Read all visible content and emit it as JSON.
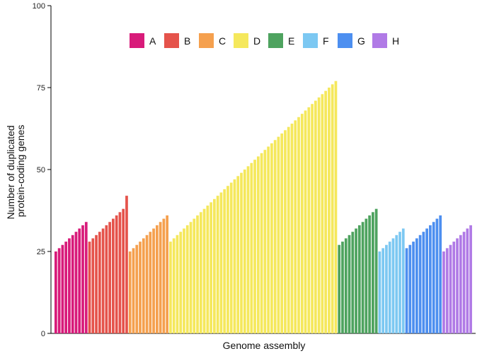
{
  "chart_data": {
    "type": "bar",
    "title": "",
    "xlabel": "Genome assembly",
    "ylabel_lines": [
      "Number of duplicated",
      "protein-coding genes"
    ],
    "ylim": [
      0,
      100
    ],
    "yticks": [
      0,
      25,
      50,
      75,
      100
    ],
    "grid": false,
    "legend_position": "top-center",
    "series": [
      {
        "name": "A",
        "color": "#d81b7a",
        "values": [
          25,
          26,
          27,
          28,
          29,
          30,
          31,
          32,
          33,
          34
        ]
      },
      {
        "name": "B",
        "color": "#e5534b",
        "values": [
          28,
          29,
          30,
          31,
          32,
          33,
          34,
          35,
          36,
          37,
          38,
          42
        ]
      },
      {
        "name": "C",
        "color": "#f5a04e",
        "values": [
          25,
          26,
          27,
          28,
          29,
          30,
          31,
          32,
          33,
          34,
          35,
          36
        ]
      },
      {
        "name": "D",
        "color": "#f5e85c",
        "values": [
          28,
          29,
          30,
          31,
          32,
          33,
          34,
          35,
          36,
          37,
          38,
          39,
          40,
          41,
          42,
          43,
          44,
          45,
          46,
          47,
          48,
          49,
          50,
          51,
          52,
          53,
          54,
          55,
          56,
          57,
          58,
          59,
          60,
          61,
          62,
          63,
          64,
          65,
          66,
          67,
          68,
          69,
          70,
          71,
          72,
          73,
          74,
          75,
          76,
          77
        ]
      },
      {
        "name": "E",
        "color": "#4ea35f",
        "values": [
          27,
          28,
          29,
          30,
          31,
          32,
          33,
          34,
          35,
          36,
          37,
          38
        ]
      },
      {
        "name": "F",
        "color": "#7cc8f2",
        "values": [
          25,
          26,
          27,
          28,
          29,
          30,
          31,
          32
        ]
      },
      {
        "name": "G",
        "color": "#4d8ff0",
        "values": [
          26,
          27,
          28,
          29,
          30,
          31,
          32,
          33,
          34,
          35,
          36
        ]
      },
      {
        "name": "H",
        "color": "#b07ae6",
        "values": [
          25,
          26,
          27,
          28,
          29,
          30,
          31,
          32,
          33
        ]
      }
    ]
  }
}
